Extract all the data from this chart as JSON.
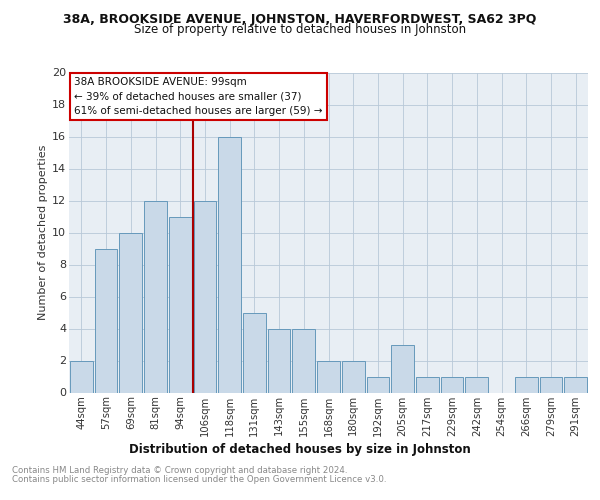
{
  "title1": "38A, BROOKSIDE AVENUE, JOHNSTON, HAVERFORDWEST, SA62 3PQ",
  "title2": "Size of property relative to detached houses in Johnston",
  "xlabel": "Distribution of detached houses by size in Johnston",
  "ylabel": "Number of detached properties",
  "categories": [
    "44sqm",
    "57sqm",
    "69sqm",
    "81sqm",
    "94sqm",
    "106sqm",
    "118sqm",
    "131sqm",
    "143sqm",
    "155sqm",
    "168sqm",
    "180sqm",
    "192sqm",
    "205sqm",
    "217sqm",
    "229sqm",
    "242sqm",
    "254sqm",
    "266sqm",
    "279sqm",
    "291sqm"
  ],
  "values": [
    2,
    9,
    10,
    12,
    11,
    12,
    16,
    5,
    4,
    4,
    2,
    2,
    1,
    3,
    1,
    1,
    1,
    0,
    1,
    1,
    1
  ],
  "bar_color": "#c9d9e8",
  "bar_edge_color": "#6699bb",
  "vline_x": 4.5,
  "vline_color": "#aa0000",
  "annotation_title": "38A BROOKSIDE AVENUE: 99sqm",
  "annotation_line2": "← 39% of detached houses are smaller (37)",
  "annotation_line3": "61% of semi-detached houses are larger (59) →",
  "annotation_box_color": "#ffffff",
  "annotation_box_edge": "#cc0000",
  "ylim": [
    0,
    20
  ],
  "yticks": [
    0,
    2,
    4,
    6,
    8,
    10,
    12,
    14,
    16,
    18,
    20
  ],
  "footnote1": "Contains HM Land Registry data © Crown copyright and database right 2024.",
  "footnote2": "Contains public sector information licensed under the Open Government Licence v3.0.",
  "plot_bg_color": "#e8eef4"
}
